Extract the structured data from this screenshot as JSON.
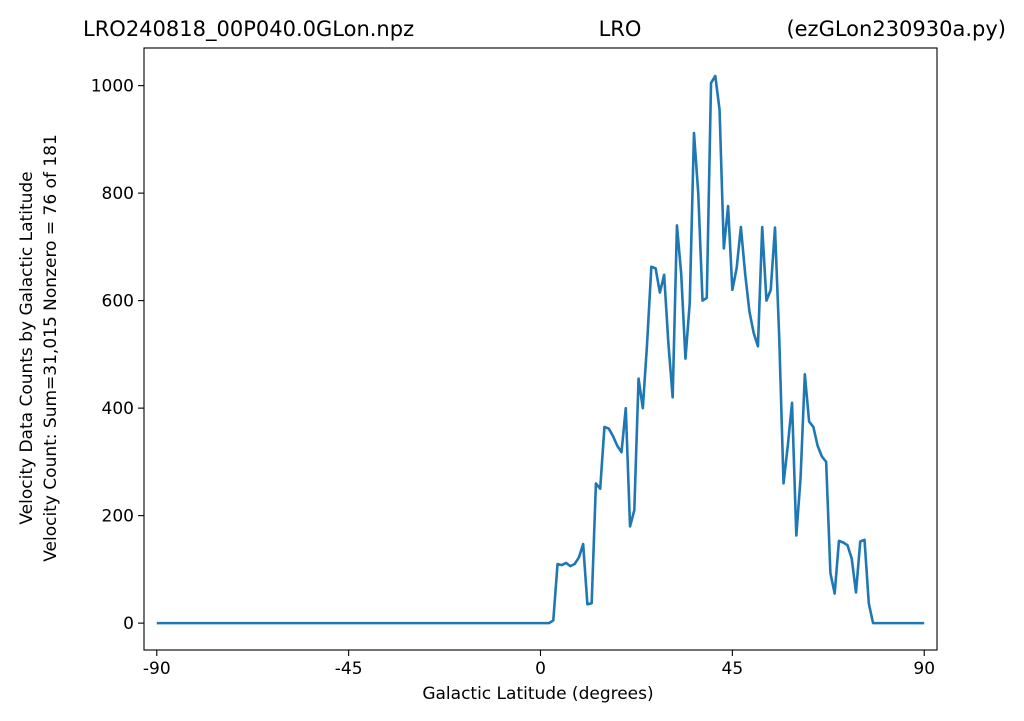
{
  "chart_data": {
    "type": "line",
    "title_left": "LRO240818_00P040.0GLon.npz",
    "title_center": "LRO",
    "title_right": "(ezGLon230930a.py)",
    "xlabel": "Galactic Latitude (degrees)",
    "ylabel_line1": "Velocity Data Counts by Galactic Latitude",
    "ylabel_line2": "Velocity Count: Sum=31,015 Nonzero = 76 of 181",
    "xlim": [
      -93,
      93
    ],
    "ylim": [
      -50,
      1070
    ],
    "xticks": [
      -90,
      -45,
      0,
      45,
      90
    ],
    "xtick_labels": [
      "-90",
      "-45",
      "0",
      "45",
      "90"
    ],
    "yticks": [
      0,
      200,
      400,
      600,
      800,
      1000
    ],
    "ytick_labels": [
      "0",
      "200",
      "400",
      "600",
      "800",
      "1000"
    ],
    "grid": false,
    "line_color": "#1f77b4",
    "series": [
      {
        "x": [
          -90,
          2,
          3,
          4,
          5,
          6,
          7,
          8,
          9,
          10,
          11,
          12,
          13,
          14,
          15,
          16,
          17,
          18,
          19,
          20,
          21,
          22,
          23,
          24,
          25,
          26,
          27,
          28,
          29,
          30,
          31,
          32,
          33,
          34,
          35,
          36,
          37,
          38,
          39,
          40,
          41,
          42,
          43,
          44,
          45,
          46,
          47,
          48,
          49,
          50,
          51,
          52,
          53,
          54,
          55,
          56,
          57,
          58,
          59,
          60,
          61,
          62,
          63,
          64,
          65,
          66,
          67,
          68,
          69,
          70,
          71,
          72,
          73,
          74,
          75,
          76,
          77,
          78,
          79,
          80,
          90
        ],
        "y": [
          0,
          0,
          5,
          110,
          108,
          112,
          106,
          110,
          122,
          147,
          35,
          37,
          260,
          250,
          365,
          362,
          348,
          330,
          318,
          400,
          180,
          210,
          455,
          400,
          520,
          663,
          660,
          615,
          648,
          520,
          420,
          740,
          650,
          492,
          595,
          912,
          800,
          600,
          605,
          1005,
          1018,
          955,
          697,
          776,
          620,
          660,
          737,
          650,
          580,
          540,
          515,
          737,
          600,
          620,
          736,
          530,
          260,
          330,
          410,
          163,
          270,
          463,
          375,
          365,
          330,
          310,
          300,
          93,
          55,
          153,
          150,
          145,
          120,
          57,
          152,
          155,
          37,
          0,
          0,
          0,
          0
        ]
      }
    ]
  }
}
